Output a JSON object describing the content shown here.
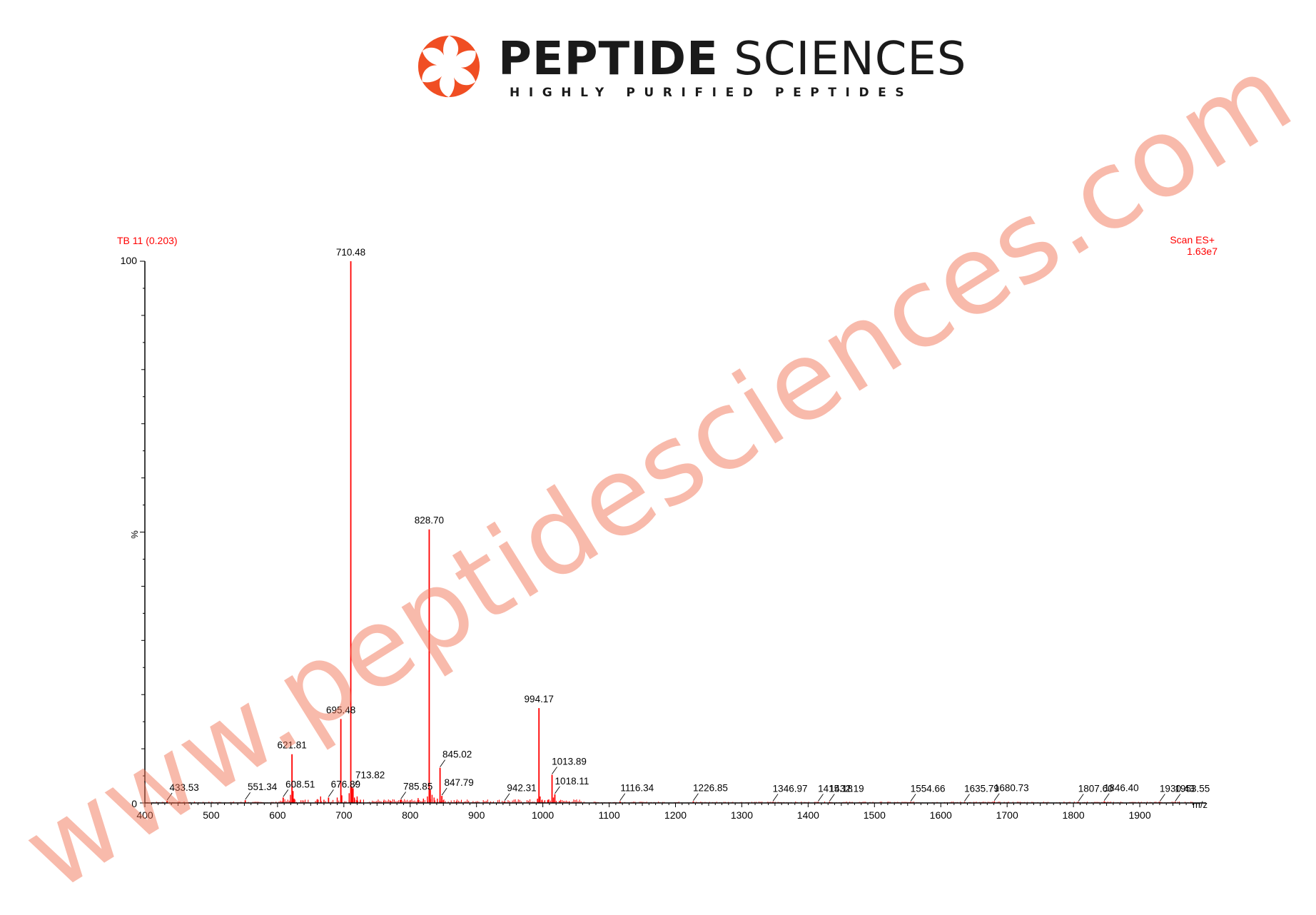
{
  "brand": {
    "name_bold": "PEPTIDE",
    "name_regular": " SCIENCES",
    "tagline": "HIGHLY PURIFIED PEPTIDES"
  },
  "watermark": "www.peptidesciences.com",
  "colors": {
    "trace": "#ff0000",
    "axis": "#000000",
    "label": "#000000",
    "header_text": "#ff0000",
    "brand_orange": "#f04e23",
    "watermark": "#f06e50"
  },
  "chart_data": {
    "type": "line",
    "title": "TB 11 (0.203)",
    "scan_type": "Scan ES+",
    "max_intensity": "1.63e7",
    "xlabel": "m/z",
    "ylabel": "%",
    "xlim": [
      400,
      2000
    ],
    "ylim": [
      0,
      100
    ],
    "x_ticks": [
      400,
      500,
      600,
      700,
      800,
      900,
      1000,
      1100,
      1200,
      1300,
      1400,
      1500,
      1600,
      1700,
      1800,
      1900
    ],
    "y_tick_labels": [
      "100",
      "0"
    ],
    "peaks": [
      {
        "x": 433.53,
        "y": 0.4,
        "label": "433.53"
      },
      {
        "x": 551.34,
        "y": 0.5,
        "label": "551.34"
      },
      {
        "x": 608.51,
        "y": 1.0,
        "label": "608.51"
      },
      {
        "x": 621.81,
        "y": 9.0,
        "label": "621.81"
      },
      {
        "x": 676.89,
        "y": 1.0,
        "label": "676.89"
      },
      {
        "x": 695.48,
        "y": 15.5,
        "label": "695.48"
      },
      {
        "x": 710.48,
        "y": 100,
        "label": "710.48"
      },
      {
        "x": 713.82,
        "y": 2.7,
        "label": "713.82"
      },
      {
        "x": 785.85,
        "y": 0.6,
        "label": "785.85"
      },
      {
        "x": 828.7,
        "y": 50.5,
        "label": "828.70"
      },
      {
        "x": 845.02,
        "y": 6.5,
        "label": "845.02"
      },
      {
        "x": 847.79,
        "y": 1.3,
        "label": "847.79"
      },
      {
        "x": 942.31,
        "y": 0.3,
        "label": "942.31"
      },
      {
        "x": 994.17,
        "y": 17.5,
        "label": "994.17"
      },
      {
        "x": 1013.89,
        "y": 5.2,
        "label": "1013.89"
      },
      {
        "x": 1018.11,
        "y": 1.6,
        "label": "1018.11"
      },
      {
        "x": 1116.34,
        "y": 0.3,
        "label": "1116.34"
      },
      {
        "x": 1226.85,
        "y": 0.3,
        "label": "1226.85"
      },
      {
        "x": 1346.97,
        "y": 0.2,
        "label": "1346.97"
      },
      {
        "x": 1415.18,
        "y": 0.2,
        "label": "1415.18"
      },
      {
        "x": 1432.19,
        "y": 0.2,
        "label": "1432.19"
      },
      {
        "x": 1554.66,
        "y": 0.2,
        "label": "1554.66"
      },
      {
        "x": 1635.79,
        "y": 0.2,
        "label": "1635.79"
      },
      {
        "x": 1680.73,
        "y": 0.3,
        "label": "1680.73"
      },
      {
        "x": 1807.6,
        "y": 0.2,
        "label": "1807.60"
      },
      {
        "x": 1846.4,
        "y": 0.3,
        "label": "1846.40"
      },
      {
        "x": 1930.43,
        "y": 0.2,
        "label": "1930.43"
      },
      {
        "x": 1953.55,
        "y": 0.2,
        "label": "1953.55"
      }
    ],
    "minor_peaks": [
      {
        "x": 619.5,
        "y": 1.5
      },
      {
        "x": 623.5,
        "y": 2.2
      },
      {
        "x": 625.0,
        "y": 0.8
      },
      {
        "x": 660.0,
        "y": 0.7
      },
      {
        "x": 665.0,
        "y": 1.2
      },
      {
        "x": 670.0,
        "y": 0.6
      },
      {
        "x": 690.0,
        "y": 1.0
      },
      {
        "x": 697.0,
        "y": 1.4
      },
      {
        "x": 708.0,
        "y": 1.8
      },
      {
        "x": 712.2,
        "y": 3.0
      },
      {
        "x": 716.0,
        "y": 1.0
      },
      {
        "x": 720.0,
        "y": 1.2
      },
      {
        "x": 725.0,
        "y": 0.6
      },
      {
        "x": 760.0,
        "y": 0.4
      },
      {
        "x": 770.0,
        "y": 0.4
      },
      {
        "x": 800.0,
        "y": 0.5
      },
      {
        "x": 812.0,
        "y": 0.9
      },
      {
        "x": 820.0,
        "y": 0.8
      },
      {
        "x": 826.0,
        "y": 1.2
      },
      {
        "x": 830.5,
        "y": 2.4
      },
      {
        "x": 833.0,
        "y": 1.5
      },
      {
        "x": 836.0,
        "y": 1.0
      },
      {
        "x": 841.0,
        "y": 0.8
      },
      {
        "x": 850.0,
        "y": 0.5
      },
      {
        "x": 870.0,
        "y": 0.3
      },
      {
        "x": 992.0,
        "y": 0.8
      },
      {
        "x": 996.0,
        "y": 1.2
      },
      {
        "x": 999.0,
        "y": 0.6
      },
      {
        "x": 1003.0,
        "y": 0.5
      },
      {
        "x": 1008.0,
        "y": 0.6
      },
      {
        "x": 1016.0,
        "y": 1.0
      },
      {
        "x": 1025.0,
        "y": 0.4
      },
      {
        "x": 1040.0,
        "y": 0.3
      }
    ]
  }
}
